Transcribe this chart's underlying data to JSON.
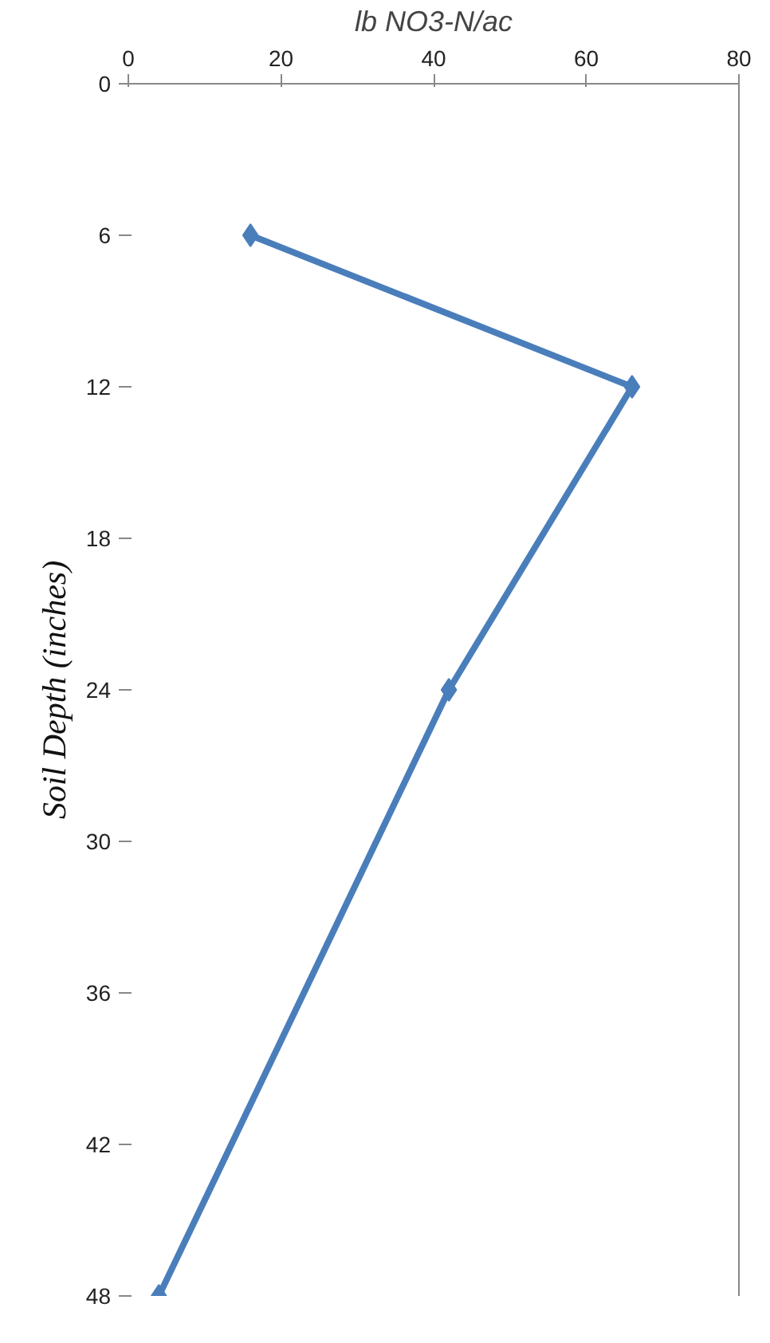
{
  "chart_data": {
    "type": "line",
    "xlabel": "lb NO3-N/ac",
    "ylabel": "Soil Depth (inches)",
    "xlim": [
      0,
      80
    ],
    "xticks": [
      0,
      20,
      40,
      60,
      80
    ],
    "ylim": [
      48,
      0
    ],
    "yticks": [
      0,
      6,
      12,
      18,
      24,
      30,
      36,
      42,
      48
    ],
    "series": [
      {
        "color": "#4a7ebb",
        "x": [
          16,
          66,
          42,
          4
        ],
        "values": [
          6,
          12,
          24,
          48
        ]
      }
    ],
    "marker": "diamond",
    "line_style": "solid",
    "grid": false
  }
}
